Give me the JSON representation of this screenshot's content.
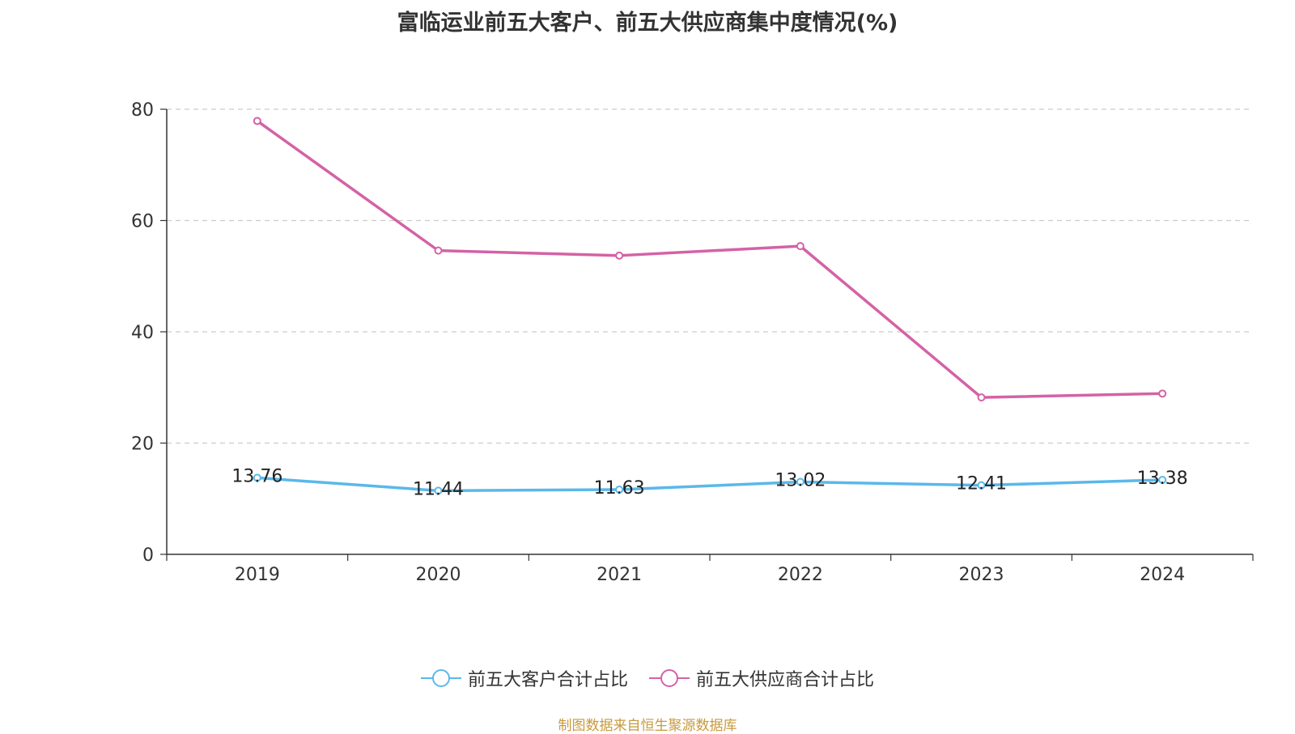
{
  "chart_data": {
    "type": "line",
    "title": "富临运业前五大客户、前五大供应商集中度情况(%)",
    "categories": [
      "2019",
      "2020",
      "2021",
      "2022",
      "2023",
      "2024"
    ],
    "series": [
      {
        "name": "前五大客户合计占比",
        "color": "#5ab8ea",
        "values": [
          13.76,
          11.44,
          11.63,
          13.02,
          12.41,
          13.38
        ],
        "show_labels": true
      },
      {
        "name": "前五大供应商合计占比",
        "color": "#d462a6",
        "values": [
          77.9,
          54.6,
          53.7,
          55.4,
          28.2,
          28.9
        ],
        "show_labels": false
      }
    ],
    "yticks": [
      "0",
      "20",
      "40",
      "60",
      "80"
    ],
    "ylim": [
      0,
      80
    ],
    "grid": true,
    "legend_position": "bottom"
  },
  "source": "制图数据来自恒生聚源数据库"
}
